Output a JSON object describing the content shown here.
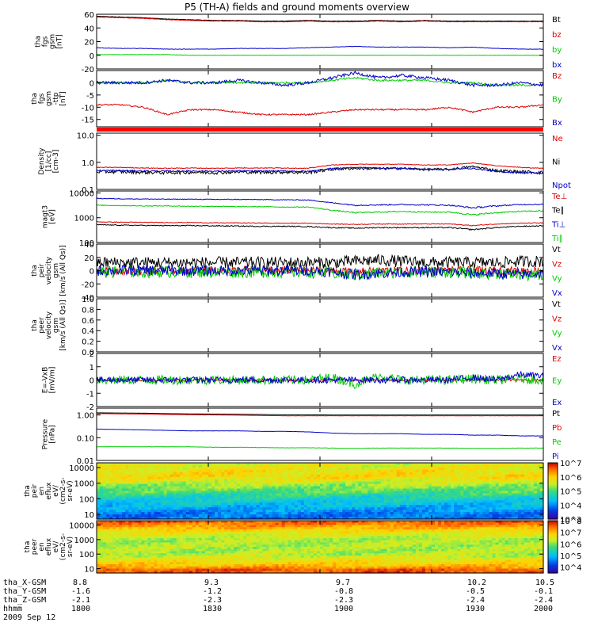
{
  "title": "P5 (TH-A) fields and ground moments overview",
  "date_label": "2009 Sep 12",
  "colors": {
    "black": "#000000",
    "red": "#e00000",
    "green": "#00cc00",
    "blue": "#0000cc"
  },
  "footer": {
    "x_ticks": [
      "1800",
      "1830",
      "1900",
      "1930",
      "2000"
    ],
    "rows": [
      {
        "label": "tha_X-GSM",
        "values": [
          "8.8",
          "9.3",
          "9.7",
          "10.2",
          "10.5"
        ]
      },
      {
        "label": "tha_Y-GSM",
        "values": [
          "-1.6",
          "-1.2",
          "-0.8",
          "-0.5",
          "-0.1"
        ]
      },
      {
        "label": "tha_Z-GSM",
        "values": [
          "-2.1",
          "-2.3",
          "-2.3",
          "-2.4",
          "-2.4"
        ]
      },
      {
        "label": "hhmm",
        "values": [
          "1800",
          "1830",
          "1900",
          "1930",
          "2000"
        ]
      }
    ]
  },
  "chart_data": [
    {
      "type": "line",
      "id": "p1",
      "ylabel": [
        "tha",
        "fgs",
        "gsm",
        "[nT]"
      ],
      "ylim": [
        -20,
        60
      ],
      "yscale": "linear",
      "yticks": [
        "-20",
        "0",
        "20",
        "40",
        "60"
      ],
      "series": [
        {
          "name": "Bt",
          "color": "#000000",
          "values": [
            57,
            56,
            55,
            53,
            52,
            51,
            51,
            50,
            50,
            51,
            50,
            50,
            51,
            50,
            51,
            50,
            50,
            50,
            50,
            50
          ],
          "noise": 0.3
        },
        {
          "name": "bz",
          "color": "#e00000",
          "values": [
            56,
            55,
            54,
            52,
            51,
            50,
            50,
            49,
            49,
            50,
            49,
            49,
            50,
            49,
            50,
            49,
            49,
            49,
            49,
            49
          ],
          "noise": 0.3
        },
        {
          "name": "by",
          "color": "#00cc00",
          "values": [
            1,
            1,
            1,
            1,
            0,
            0,
            0,
            0,
            0,
            0,
            0,
            0,
            0,
            0,
            0,
            0,
            0,
            0,
            0,
            0
          ],
          "noise": 0.2
        },
        {
          "name": "bx",
          "color": "#0000cc",
          "values": [
            11,
            10,
            10,
            9,
            9,
            9,
            10,
            10,
            10,
            11,
            12,
            13,
            12,
            12,
            12,
            11,
            12,
            10,
            9,
            9
          ],
          "noise": 0.3
        }
      ]
    },
    {
      "type": "line",
      "id": "p2",
      "ylabel": [
        "tha",
        "fgs",
        "gsm",
        "-ttp",
        "[nT]"
      ],
      "ylim": [
        -18,
        5
      ],
      "yscale": "linear",
      "yticks": [
        "-15",
        "-10",
        "-5",
        "0"
      ],
      "series": [
        {
          "name": "Bz",
          "color": "#e00000",
          "values": [
            -9,
            -9,
            -10,
            -13,
            -11,
            -11,
            -12,
            -13,
            -13,
            -13,
            -12,
            -11,
            -11,
            -11,
            -11,
            -10,
            -12,
            -10,
            -10,
            -9
          ],
          "noise": 0.3
        },
        {
          "name": "By",
          "color": "#00cc00",
          "values": [
            0,
            0,
            0,
            1,
            0,
            0,
            0,
            0,
            0,
            0,
            1,
            2,
            1,
            1,
            1,
            0,
            0,
            -1,
            -1,
            -1
          ],
          "noise": 0.4
        },
        {
          "name": "Bx",
          "color": "#0000cc",
          "values": [
            0,
            0,
            0,
            1,
            0,
            0,
            1,
            0,
            -1,
            0,
            2,
            4,
            2,
            3,
            2,
            1,
            -1,
            -1,
            0,
            -1
          ],
          "noise": 0.6
        }
      ]
    },
    {
      "type": "line",
      "id": "p3",
      "ylabel": [
        "Density",
        "[1/cc]",
        "[cm-3]"
      ],
      "ylim": [
        0.1,
        12
      ],
      "yscale": "log",
      "yticks": [
        "0.1",
        "1.0",
        "10.0"
      ],
      "series": [
        {
          "name": "Ne",
          "color": "#e00000",
          "values": [
            0.65,
            0.65,
            0.62,
            0.6,
            0.62,
            0.6,
            0.62,
            0.62,
            0.62,
            0.6,
            0.8,
            0.85,
            0.85,
            0.85,
            0.8,
            0.8,
            0.95,
            0.75,
            0.65,
            0.6
          ],
          "noise": 0.02
        },
        {
          "name": "Ni",
          "color": "#000000",
          "values": [
            0.45,
            0.45,
            0.43,
            0.42,
            0.43,
            0.42,
            0.44,
            0.43,
            0.44,
            0.42,
            0.55,
            0.6,
            0.58,
            0.6,
            0.55,
            0.55,
            0.7,
            0.5,
            0.45,
            0.42
          ],
          "noise": 0.06
        },
        {
          "name": "Npot",
          "color": "#0000cc",
          "values": [
            0.5,
            0.5,
            0.48,
            0.47,
            0.48,
            0.47,
            0.48,
            0.47,
            0.48,
            0.46,
            0.6,
            0.65,
            0.62,
            0.6,
            0.55,
            0.55,
            0.6,
            0.45,
            0.42,
            0.4
          ],
          "noise": 0.03
        }
      ]
    },
    {
      "type": "line",
      "id": "p4",
      "ylabel": [
        "magt3",
        "[eV]"
      ],
      "ylim": [
        100,
        12000
      ],
      "yscale": "log",
      "yticks": [
        "100",
        "1000",
        "10000"
      ],
      "series": [
        {
          "name": "Te⊥",
          "color": "#e00000",
          "values": [
            680,
            660,
            650,
            640,
            640,
            620,
            620,
            610,
            600,
            600,
            560,
            540,
            560,
            560,
            560,
            560,
            480,
            560,
            600,
            620
          ],
          "noise": 20
        },
        {
          "name": "Te∥",
          "color": "#000000",
          "values": [
            520,
            500,
            490,
            480,
            480,
            470,
            460,
            450,
            450,
            440,
            400,
            380,
            400,
            400,
            400,
            400,
            330,
            400,
            450,
            470
          ],
          "noise": 20
        },
        {
          "name": "Ti⊥",
          "color": "#0000cc",
          "values": [
            6000,
            5800,
            5700,
            5600,
            5600,
            5500,
            5500,
            5400,
            5300,
            5200,
            4000,
            3200,
            3300,
            3400,
            3300,
            3200,
            2500,
            3000,
            3400,
            3500
          ],
          "noise": 180
        },
        {
          "name": "Ti∥",
          "color": "#00cc00",
          "values": [
            3200,
            3100,
            3000,
            3000,
            2900,
            2900,
            2800,
            2800,
            2700,
            2700,
            2000,
            1600,
            1700,
            1800,
            1700,
            1700,
            1300,
            1600,
            1800,
            1900
          ],
          "noise": 100
        }
      ]
    },
    {
      "type": "line",
      "id": "p5",
      "ylabel": [
        "tha",
        "peir",
        "velocity",
        "gsm",
        "[km/s (All Qs)]"
      ],
      "ylim": [
        -40,
        40
      ],
      "yscale": "linear",
      "yticks": [
        "-40",
        "-20",
        "0",
        "20",
        "40"
      ],
      "series": [
        {
          "name": "Vt",
          "color": "#000000",
          "values": [
            12,
            12,
            12,
            12,
            12,
            12,
            12,
            12,
            12,
            12,
            12,
            14,
            16,
            14,
            12,
            12,
            12,
            12,
            14,
            14
          ],
          "noise": 9
        },
        {
          "name": "Vz",
          "color": "#e00000",
          "values": [
            0,
            0,
            0,
            0,
            0,
            0,
            0,
            0,
            0,
            0,
            0,
            -2,
            0,
            0,
            0,
            0,
            0,
            0,
            0,
            0
          ],
          "noise": 6
        },
        {
          "name": "Vy",
          "color": "#00cc00",
          "values": [
            -2,
            -2,
            -2,
            -2,
            -2,
            -2,
            -2,
            -2,
            -2,
            -2,
            -4,
            -6,
            -4,
            -2,
            -2,
            -2,
            -4,
            -4,
            -6,
            -8
          ],
          "noise": 9
        },
        {
          "name": "Vx",
          "color": "#0000cc",
          "values": [
            0,
            0,
            0,
            0,
            0,
            0,
            0,
            0,
            0,
            0,
            -2,
            -6,
            -4,
            -2,
            -2,
            -2,
            -4,
            -4,
            -6,
            -4
          ],
          "noise": 8
        }
      ]
    },
    {
      "type": "line",
      "id": "p6",
      "ylabel": [
        "tha",
        "peer",
        "velocity",
        "gsm",
        "[km/s (All Qs)]"
      ],
      "ylim": [
        0,
        1
      ],
      "yscale": "linear",
      "yticks": [
        "0.0",
        "0.2",
        "0.4",
        "0.6",
        "0.8",
        "1.0"
      ],
      "series": [
        {
          "name": "Vt",
          "color": "#000000",
          "values": []
        },
        {
          "name": "Vz",
          "color": "#e00000",
          "values": []
        },
        {
          "name": "Vy",
          "color": "#00cc00",
          "values": []
        },
        {
          "name": "Vx",
          "color": "#0000cc",
          "values": []
        }
      ]
    },
    {
      "type": "line",
      "id": "p7",
      "ylabel": [
        "E=-VxB",
        "[mV/m]"
      ],
      "ylim": [
        -2,
        2
      ],
      "yscale": "linear",
      "yticks": [
        "-2",
        "-1",
        "0",
        "1",
        "2"
      ],
      "series": [
        {
          "name": "Ez",
          "color": "#e00000",
          "values": [
            0,
            0,
            0,
            0,
            0,
            0,
            0,
            0,
            0,
            0,
            0,
            0,
            0,
            0,
            0,
            0,
            0,
            0,
            0,
            0
          ],
          "noise": 0.08
        },
        {
          "name": "Ey",
          "color": "#00cc00",
          "values": [
            0,
            0,
            0,
            0,
            0,
            0,
            0,
            0,
            0,
            0,
            0.2,
            -0.3,
            0.3,
            0,
            0,
            0,
            0.1,
            0,
            0.1,
            0
          ],
          "noise": 0.35
        },
        {
          "name": "Ex",
          "color": "#0000cc",
          "values": [
            0,
            0,
            0,
            0,
            0,
            0,
            0,
            0,
            0,
            0,
            0,
            0,
            0,
            0,
            0,
            0,
            0.2,
            0,
            0.4,
            0.3
          ],
          "noise": 0.25
        }
      ]
    },
    {
      "type": "line",
      "id": "p8",
      "ylabel": [
        "Pressure",
        "[nPa]"
      ],
      "ylim": [
        0.01,
        2
      ],
      "yscale": "log",
      "yticks": [
        "0.01",
        "0.10",
        "1.00"
      ],
      "series": [
        {
          "name": "Pt",
          "color": "#000000",
          "values": [
            1.25,
            1.22,
            1.2,
            1.15,
            1.12,
            1.1,
            1.08,
            1.05,
            1.02,
            1.02,
            1.0,
            1.0,
            1.0,
            1.0,
            1.0,
            1.0,
            1.0,
            1.0,
            1.0,
            1.0
          ],
          "noise": 0.005
        },
        {
          "name": "Pb",
          "color": "#e00000",
          "values": [
            1.15,
            1.12,
            1.1,
            1.05,
            1.02,
            1.0,
            0.98,
            0.95,
            0.92,
            0.92,
            0.92,
            0.92,
            0.92,
            0.92,
            0.92,
            0.92,
            0.92,
            0.92,
            0.92,
            0.92
          ],
          "noise": 0.005
        },
        {
          "name": "Pe",
          "color": "#00cc00",
          "values": [
            0.04,
            0.04,
            0.04,
            0.04,
            0.04,
            0.038,
            0.038,
            0.037,
            0.036,
            0.036,
            0.035,
            0.034,
            0.035,
            0.035,
            0.035,
            0.035,
            0.034,
            0.034,
            0.035,
            0.035
          ],
          "noise": 0.0005
        },
        {
          "name": "Pi",
          "color": "#0000cc",
          "values": [
            0.24,
            0.23,
            0.22,
            0.21,
            0.2,
            0.2,
            0.2,
            0.19,
            0.19,
            0.18,
            0.16,
            0.15,
            0.15,
            0.15,
            0.14,
            0.14,
            0.13,
            0.13,
            0.12,
            0.12
          ],
          "noise": 0.002
        }
      ]
    },
    {
      "type": "heatmap",
      "id": "p9",
      "ylabel": [
        "tha",
        "peir",
        "en",
        "eflux",
        "eV/",
        "(cm2-s-",
        "sr-eV)"
      ],
      "ylim": [
        5,
        20000
      ],
      "yscale": "log",
      "yticks": [
        "10",
        "100",
        "1000",
        "10000"
      ],
      "colorbar": {
        "min": 3,
        "max": 7,
        "ticks": [
          "10^3",
          "10^4",
          "10^5",
          "10^6",
          "10^7"
        ]
      },
      "profile": [
        {
          "energy": 10,
          "level": 3.9
        },
        {
          "energy": 100,
          "level": 4.6
        },
        {
          "energy": 1000,
          "level": 5.5
        },
        {
          "energy": 3000,
          "level": 5.9
        },
        {
          "energy": 10000,
          "level": 5.7
        },
        {
          "energy": 20000,
          "level": 5.6
        }
      ]
    },
    {
      "type": "heatmap",
      "id": "p10",
      "ylabel": [
        "tha",
        "peer",
        "en",
        "eflux",
        "eV/",
        "(cm2-s-",
        "sr-eV)"
      ],
      "ylim": [
        5,
        20000
      ],
      "yscale": "log",
      "yticks": [
        "10",
        "100",
        "1000",
        "10000"
      ],
      "colorbar": {
        "min": 3.5,
        "max": 8,
        "ticks": [
          "10^4",
          "10^5",
          "10^6",
          "10^7",
          "10^8"
        ]
      },
      "profile": [
        {
          "energy": 8,
          "level": 7.6
        },
        {
          "energy": 15,
          "level": 7.0
        },
        {
          "energy": 100,
          "level": 6.2
        },
        {
          "energy": 1000,
          "level": 6.2
        },
        {
          "energy": 3000,
          "level": 6.6
        },
        {
          "energy": 10000,
          "level": 7.3
        },
        {
          "energy": 20000,
          "level": 7.6
        }
      ]
    }
  ]
}
